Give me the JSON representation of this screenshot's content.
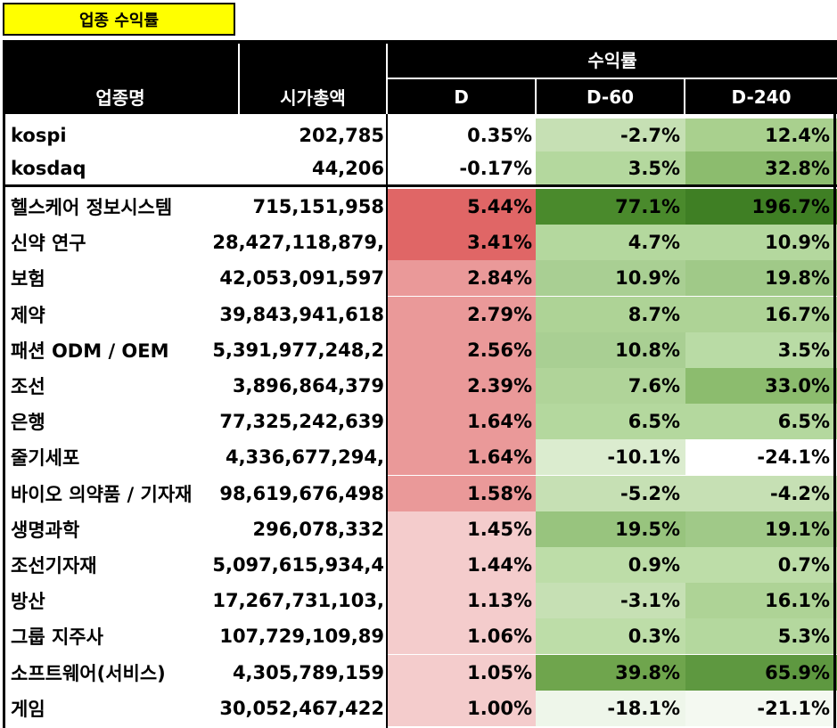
{
  "title": "업종 수익률",
  "header": {
    "group": "수익률",
    "col_name": "업종명",
    "col_cap": "시가총액",
    "col_d": "D",
    "col_d60": "D-60",
    "col_d240": "D-240"
  },
  "index_rows": [
    {
      "name": "kospi",
      "cap": "202,785",
      "d": "0.35%",
      "d60": "-2.7%",
      "d240": "12.4%",
      "d_color": "#ffffff",
      "d60_color": "#c6e0b4",
      "d240_color": "#a9d08e"
    },
    {
      "name": "kosdaq",
      "cap": "44,206",
      "d": "-0.17%",
      "d60": "3.5%",
      "d240": "32.8%",
      "d_color": "#ffffff",
      "d60_color": "#b4d89e",
      "d240_color": "#8cbc6e"
    }
  ],
  "sector_rows": [
    {
      "name": "헬스케어 정보시스템",
      "cap": "715,151,958",
      "d": "5.44%",
      "d60": "77.1%",
      "d240": "196.7%",
      "d_color": "#e06666",
      "d60_color": "#4a8a2c",
      "d240_color": "#3f7f24"
    },
    {
      "name": "신약 연구",
      "cap": "28,427,118,879,",
      "d": "3.41%",
      "d60": "4.7%",
      "d240": "10.9%",
      "d_color": "#e06666",
      "d60_color": "#b4d89e",
      "d240_color": "#b4d89e"
    },
    {
      "name": "보험",
      "cap": "42,053,091,597",
      "d": "2.84%",
      "d60": "10.9%",
      "d240": "19.8%",
      "d_color": "#ea9999",
      "d60_color": "#a9cf93",
      "d240_color": "#a0c988"
    },
    {
      "name": "제약",
      "cap": "39,843,941,618",
      "d": "2.79%",
      "d60": "8.7%",
      "d240": "16.7%",
      "d_color": "#ea9999",
      "d60_color": "#aed396",
      "d240_color": "#aed396"
    },
    {
      "name": "패션 ODM / OEM",
      "cap": "5,391,977,248,2",
      "d": "2.56%",
      "d60": "10.8%",
      "d240": "3.5%",
      "d_color": "#ea9999",
      "d60_color": "#a9cf93",
      "d240_color": "#b9dba5"
    },
    {
      "name": "조선",
      "cap": "3,896,864,379",
      "d": "2.39%",
      "d60": "7.6%",
      "d240": "33.0%",
      "d_color": "#ea9999",
      "d60_color": "#b0d499",
      "d240_color": "#8cbc6e"
    },
    {
      "name": "은행",
      "cap": "77,325,242,639",
      "d": "1.64%",
      "d60": "6.5%",
      "d240": "6.5%",
      "d_color": "#ea9999",
      "d60_color": "#b4d89e",
      "d240_color": "#b4d89e"
    },
    {
      "name": "줄기세포",
      "cap": "4,336,677,294,",
      "d": "1.64%",
      "d60": "-10.1%",
      "d240": "-24.1%",
      "d_color": "#ea9999",
      "d60_color": "#dbeccf",
      "d240_color": "#ffffff"
    },
    {
      "name": "바이오 의약품 / 기자재",
      "cap": "98,619,676,498",
      "d": "1.58%",
      "d60": "-5.2%",
      "d240": "-4.2%",
      "d_color": "#ea9999",
      "d60_color": "#c6e0b4",
      "d240_color": "#c6e0b4"
    },
    {
      "name": "생명과학",
      "cap": "296,078,332",
      "d": "1.45%",
      "d60": "19.5%",
      "d240": "19.1%",
      "d_color": "#f4cccc",
      "d60_color": "#98c47e",
      "d240_color": "#a0c988"
    },
    {
      "name": "조선기자재",
      "cap": "5,097,615,934,4",
      "d": "1.44%",
      "d60": "0.9%",
      "d240": "0.7%",
      "d_color": "#f4cccc",
      "d60_color": "#bddda8",
      "d240_color": "#bddda8"
    },
    {
      "name": "방산",
      "cap": "17,267,731,103,",
      "d": "1.13%",
      "d60": "-3.1%",
      "d240": "16.1%",
      "d_color": "#f4cccc",
      "d60_color": "#c6e0b4",
      "d240_color": "#aed396"
    },
    {
      "name": "그룹 지주사",
      "cap": "107,729,109,89",
      "d": "1.06%",
      "d60": "0.3%",
      "d240": "5.3%",
      "d_color": "#f4cccc",
      "d60_color": "#bddda8",
      "d240_color": "#b4d89e"
    },
    {
      "name": "소프트웨어(서비스)",
      "cap": "4,305,789,159",
      "d": "1.05%",
      "d60": "39.8%",
      "d240": "65.9%",
      "d_color": "#f4cccc",
      "d60_color": "#6fa54d",
      "d240_color": "#5e9840"
    },
    {
      "name": "게임",
      "cap": "30,052,467,422",
      "d": "1.00%",
      "d60": "-18.1%",
      "d240": "-21.1%",
      "d_color": "#f4cccc",
      "d60_color": "#eef6ea",
      "d240_color": "#f4f9f1"
    }
  ]
}
